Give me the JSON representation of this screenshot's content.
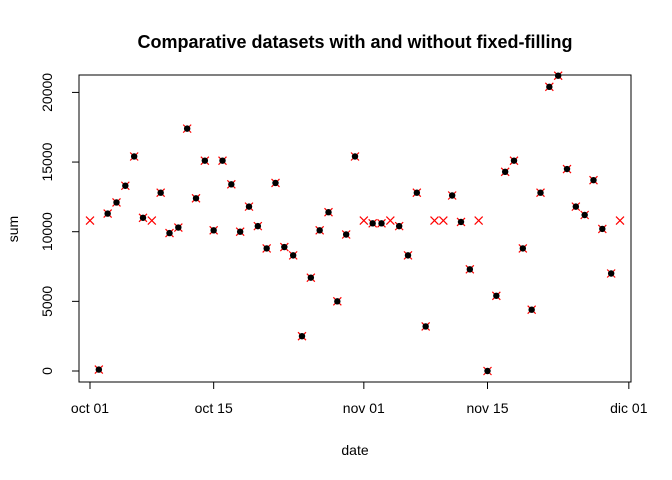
{
  "chart_data": {
    "type": "scatter",
    "title": "Comparative datasets with and without fixed-filling",
    "xlabel": "date",
    "ylabel": "sum",
    "x_tick_labels": [
      "oct 01",
      "oct 15",
      "nov 01",
      "nov 15",
      "dic 01"
    ],
    "x_tick_positions": [
      "2020-10-01",
      "2020-10-15",
      "2020-11-01",
      "2020-11-15",
      "2020-12-01"
    ],
    "xlim": [
      "2020-10-01",
      "2020-11-30"
    ],
    "y_tick_labels": [
      "0",
      "5000",
      "10000",
      "15000",
      "20000"
    ],
    "y_ticks": [
      0,
      5000,
      10000,
      15000,
      20000
    ],
    "ylim": [
      0,
      21250
    ],
    "grid": false,
    "legend": "none",
    "series": [
      {
        "role": "filled",
        "marker": "x",
        "color": "#ff0000",
        "points": [
          [
            "2020-10-01",
            10800
          ],
          [
            "2020-10-02",
            100
          ],
          [
            "2020-10-03",
            11300
          ],
          [
            "2020-10-04",
            12100
          ],
          [
            "2020-10-05",
            13300
          ],
          [
            "2020-10-06",
            15400
          ],
          [
            "2020-10-07",
            11000
          ],
          [
            "2020-10-08",
            10800
          ],
          [
            "2020-10-09",
            12800
          ],
          [
            "2020-10-10",
            9900
          ],
          [
            "2020-10-11",
            10300
          ],
          [
            "2020-10-12",
            17400
          ],
          [
            "2020-10-13",
            12400
          ],
          [
            "2020-10-14",
            15100
          ],
          [
            "2020-10-15",
            10100
          ],
          [
            "2020-10-16",
            15100
          ],
          [
            "2020-10-17",
            13400
          ],
          [
            "2020-10-18",
            10000
          ],
          [
            "2020-10-19",
            11800
          ],
          [
            "2020-10-20",
            10400
          ],
          [
            "2020-10-21",
            8800
          ],
          [
            "2020-10-22",
            13500
          ],
          [
            "2020-10-23",
            8900
          ],
          [
            "2020-10-24",
            8300
          ],
          [
            "2020-10-25",
            2500
          ],
          [
            "2020-10-26",
            6700
          ],
          [
            "2020-10-27",
            10100
          ],
          [
            "2020-10-28",
            11400
          ],
          [
            "2020-10-29",
            5000
          ],
          [
            "2020-10-30",
            9800
          ],
          [
            "2020-10-31",
            15400
          ],
          [
            "2020-11-01",
            10800
          ],
          [
            "2020-11-02",
            10600
          ],
          [
            "2020-11-03",
            10600
          ],
          [
            "2020-11-04",
            10800
          ],
          [
            "2020-11-05",
            10400
          ],
          [
            "2020-11-06",
            8300
          ],
          [
            "2020-11-07",
            12800
          ],
          [
            "2020-11-08",
            3200
          ],
          [
            "2020-11-09",
            10800
          ],
          [
            "2020-11-10",
            10800
          ],
          [
            "2020-11-11",
            12600
          ],
          [
            "2020-11-12",
            10700
          ],
          [
            "2020-11-13",
            7300
          ],
          [
            "2020-11-14",
            10800
          ],
          [
            "2020-11-15",
            0
          ],
          [
            "2020-11-16",
            5400
          ],
          [
            "2020-11-17",
            14300
          ],
          [
            "2020-11-18",
            15100
          ],
          [
            "2020-11-19",
            8800
          ],
          [
            "2020-11-20",
            4400
          ],
          [
            "2020-11-21",
            12800
          ],
          [
            "2020-11-22",
            20400
          ],
          [
            "2020-11-23",
            21200
          ],
          [
            "2020-11-24",
            14500
          ],
          [
            "2020-11-25",
            11800
          ],
          [
            "2020-11-26",
            11200
          ],
          [
            "2020-11-27",
            13700
          ],
          [
            "2020-11-28",
            10200
          ],
          [
            "2020-11-29",
            7000
          ],
          [
            "2020-11-30",
            10800
          ]
        ]
      },
      {
        "role": "original",
        "marker": "circle-filled",
        "color": "#000000",
        "points": [
          [
            "2020-10-02",
            100
          ],
          [
            "2020-10-03",
            11300
          ],
          [
            "2020-10-04",
            12100
          ],
          [
            "2020-10-05",
            13300
          ],
          [
            "2020-10-06",
            15400
          ],
          [
            "2020-10-07",
            11000
          ],
          [
            "2020-10-09",
            12800
          ],
          [
            "2020-10-10",
            9900
          ],
          [
            "2020-10-11",
            10300
          ],
          [
            "2020-10-12",
            17400
          ],
          [
            "2020-10-13",
            12400
          ],
          [
            "2020-10-14",
            15100
          ],
          [
            "2020-10-15",
            10100
          ],
          [
            "2020-10-16",
            15100
          ],
          [
            "2020-10-17",
            13400
          ],
          [
            "2020-10-18",
            10000
          ],
          [
            "2020-10-19",
            11800
          ],
          [
            "2020-10-20",
            10400
          ],
          [
            "2020-10-21",
            8800
          ],
          [
            "2020-10-22",
            13500
          ],
          [
            "2020-10-23",
            8900
          ],
          [
            "2020-10-24",
            8300
          ],
          [
            "2020-10-25",
            2500
          ],
          [
            "2020-10-26",
            6700
          ],
          [
            "2020-10-27",
            10100
          ],
          [
            "2020-10-28",
            11400
          ],
          [
            "2020-10-29",
            5000
          ],
          [
            "2020-10-30",
            9800
          ],
          [
            "2020-10-31",
            15400
          ],
          [
            "2020-11-02",
            10600
          ],
          [
            "2020-11-03",
            10600
          ],
          [
            "2020-11-05",
            10400
          ],
          [
            "2020-11-06",
            8300
          ],
          [
            "2020-11-07",
            12800
          ],
          [
            "2020-11-08",
            3200
          ],
          [
            "2020-11-11",
            12600
          ],
          [
            "2020-11-12",
            10700
          ],
          [
            "2020-11-13",
            7300
          ],
          [
            "2020-11-15",
            0
          ],
          [
            "2020-11-16",
            5400
          ],
          [
            "2020-11-17",
            14300
          ],
          [
            "2020-11-18",
            15100
          ],
          [
            "2020-11-19",
            8800
          ],
          [
            "2020-11-20",
            4400
          ],
          [
            "2020-11-21",
            12800
          ],
          [
            "2020-11-22",
            20400
          ],
          [
            "2020-11-23",
            21200
          ],
          [
            "2020-11-24",
            14500
          ],
          [
            "2020-11-25",
            11800
          ],
          [
            "2020-11-26",
            11200
          ],
          [
            "2020-11-27",
            13700
          ],
          [
            "2020-11-28",
            10200
          ],
          [
            "2020-11-29",
            7000
          ]
        ]
      }
    ]
  }
}
